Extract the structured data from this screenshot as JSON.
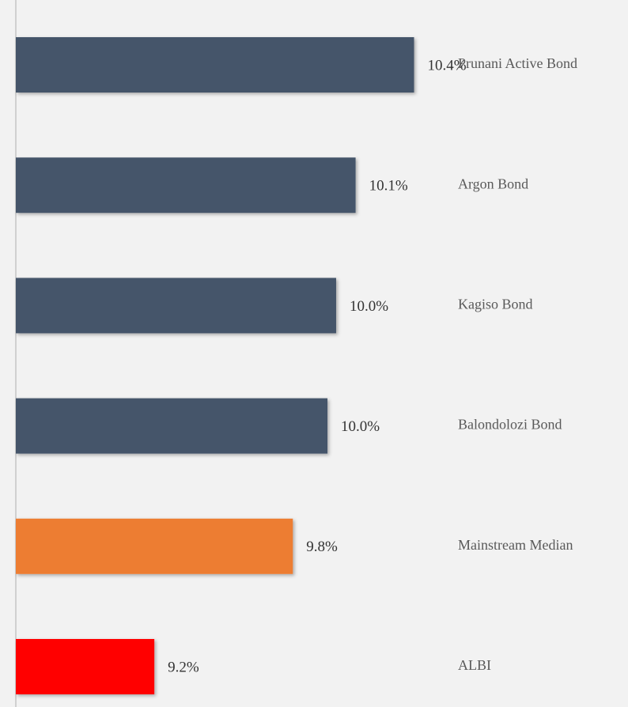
{
  "chart_data": {
    "type": "hbar",
    "categories": [
      "Prunani Active Bond",
      "Argon Bond",
      "Kagiso Bond",
      "Balondolozi Bond",
      "Mainstream Median",
      "ALBI"
    ],
    "values": [
      10.4,
      10.13,
      10.04,
      10.0,
      9.84,
      9.2
    ],
    "value_labels": [
      "10.4%",
      "10.1%",
      "10.0%",
      "10.0%",
      "9.8%",
      "9.2%"
    ],
    "colors": [
      "#44546a",
      "#44546a",
      "#44546a",
      "#44546a",
      "#ed7d31",
      "#ff0000"
    ],
    "xlim": [
      8.56,
      10.57
    ]
  }
}
